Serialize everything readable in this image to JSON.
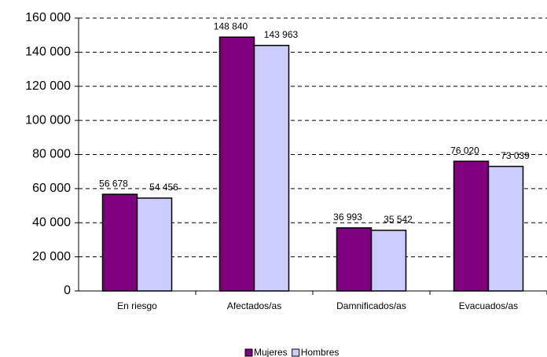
{
  "chart_data": {
    "type": "bar",
    "categories": [
      "En riesgo",
      "Afectados/as",
      "Damnificados/as",
      "Evacuados/as"
    ],
    "series": [
      {
        "name": "Mujeres",
        "color": "#800080",
        "values": [
          56678,
          148840,
          36993,
          76020
        ],
        "value_labels": [
          "56 678",
          "148 840",
          "36 993",
          "76 020"
        ]
      },
      {
        "name": "Hombres",
        "color": "#ccccff",
        "values": [
          54456,
          143963,
          35542,
          73039
        ],
        "value_labels": [
          "54 456",
          "143 963",
          "35 542",
          "73 039"
        ]
      }
    ],
    "ylim": [
      0,
      160000
    ],
    "yticks": [
      0,
      {
        "value": 20000,
        "label": "20 000"
      },
      {
        "value": 40000,
        "label": "40 000"
      },
      {
        "value": 60000,
        "label": "60 000"
      },
      {
        "value": 80000,
        "label": "80 000"
      },
      {
        "value": 100000,
        "label": "100 000"
      },
      {
        "value": 120000,
        "label": "120 000"
      },
      {
        "value": 140000,
        "label": "140 000"
      },
      {
        "value": 160000,
        "label": "160 000"
      }
    ],
    "grid": true,
    "legend": "bottom"
  }
}
